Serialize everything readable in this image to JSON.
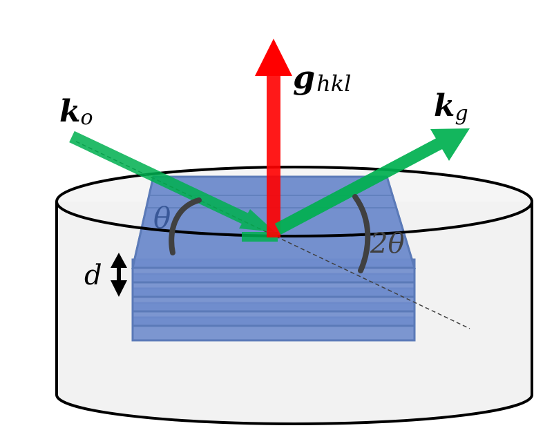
{
  "labels": {
    "k_incident": "k",
    "k_incident_sub": "o",
    "k_diffracted": "k",
    "k_diffracted_sub": "g",
    "g_vector": "g",
    "g_vector_sub": "hkl",
    "theta": "θ",
    "two_theta": "2θ",
    "spacing": "d"
  },
  "colors": {
    "incident_arrow": "#00b050",
    "diffracted_arrow": "#00b050",
    "g_arrow": "#ff0000",
    "planes_fill": "#6f8ccc",
    "planes_stroke": "#5b7ab8",
    "cylinder_fill": "#f2f2f2",
    "cylinder_stroke": "#000000",
    "angle_arc": "#404040"
  },
  "plane_count": 6
}
